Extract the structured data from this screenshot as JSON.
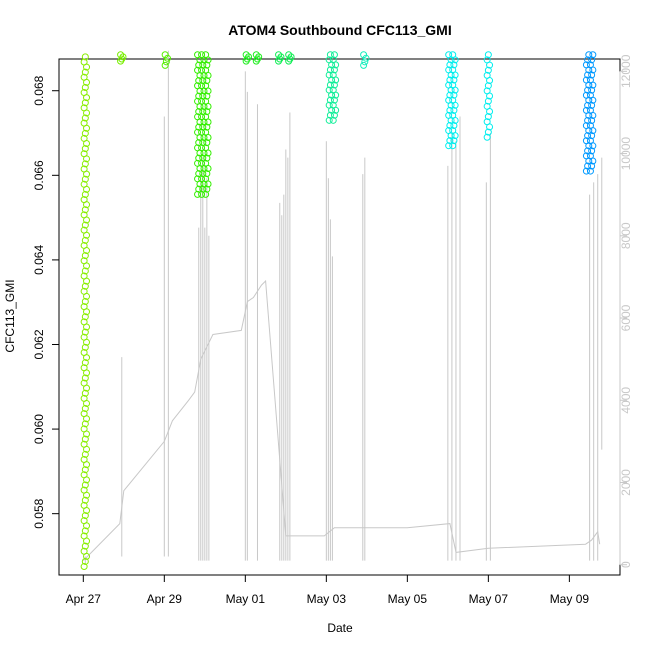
{
  "chart_data": {
    "type": "scatter",
    "title": "ATOM4 Southbound CFC113_GMI",
    "xlabel": "Date",
    "ylabel": "CFC113_GMI",
    "x_ticks": [
      "Apr 27",
      "Apr 29",
      "May 01",
      "May 03",
      "May 05",
      "May 07",
      "May 09"
    ],
    "x_tick_days": [
      0,
      2,
      4,
      6,
      8,
      10,
      12
    ],
    "xlim_days": [
      -0.6,
      13.25
    ],
    "y_ticks": [
      "0.058",
      "0.060",
      "0.062",
      "0.064",
      "0.066",
      "0.068"
    ],
    "y_tick_values": [
      0.058,
      0.06,
      0.062,
      0.064,
      0.066,
      0.068
    ],
    "ylim": [
      0.05655,
      0.06875
    ],
    "right_axis": {
      "ticks": [
        "0",
        "2000",
        "4000",
        "6000",
        "8000",
        "10000",
        "12000"
      ],
      "tick_values": [
        0,
        2000,
        4000,
        6000,
        8000,
        10000,
        12000
      ],
      "ylim": [
        -250,
        12300
      ],
      "color": "#c8c8c8"
    },
    "series": [
      {
        "color": "#88ee00",
        "days": [
          0.05
        ],
        "ymin": 0.05675,
        "ymax": 0.0688
      },
      {
        "color": "#78ee00",
        "days": [
          0.95
        ],
        "ymin": 0.0687,
        "ymax": 0.06885
      },
      {
        "color": "#55ee00",
        "days": [
          2.05
        ],
        "ymin": 0.0686,
        "ymax": 0.06885
      },
      {
        "color": "#33ee00",
        "days": [
          2.85,
          2.95,
          3.05
        ],
        "ymin": 0.06555,
        "ymax": 0.06885
      },
      {
        "color": "#22ee22",
        "days": [
          4.05,
          4.3
        ],
        "ymin": 0.0687,
        "ymax": 0.06885
      },
      {
        "color": "#11ee55",
        "days": [
          4.85,
          5.1
        ],
        "ymin": 0.0687,
        "ymax": 0.06885
      },
      {
        "color": "#11ee99",
        "days": [
          6.1,
          6.2
        ],
        "ymin": 0.0673,
        "ymax": 0.06885
      },
      {
        "color": "#11eebb",
        "days": [
          6.95
        ],
        "ymin": 0.0686,
        "ymax": 0.06885
      },
      {
        "color": "#00eeee",
        "days": [
          9.05,
          9.15
        ],
        "ymin": 0.0667,
        "ymax": 0.06885
      },
      {
        "color": "#00eeee",
        "days": [
          10.0
        ],
        "ymin": 0.0669,
        "ymax": 0.06885
      },
      {
        "color": "#0099ff",
        "days": [
          12.45,
          12.55
        ],
        "ymin": 0.0661,
        "ymax": 0.06885
      }
    ],
    "altitude_trace": {
      "color": "#c8c8c8",
      "points": [
        [
          0.0,
          100
        ],
        [
          0.1,
          200
        ],
        [
          0.9,
          1000
        ],
        [
          1.0,
          1800
        ],
        [
          2.0,
          3000
        ],
        [
          2.2,
          3500
        ],
        [
          2.6,
          4000
        ],
        [
          2.75,
          4200
        ],
        [
          2.9,
          5000
        ],
        [
          3.1,
          5400
        ],
        [
          3.2,
          5600
        ],
        [
          3.9,
          5700
        ],
        [
          4.05,
          6400
        ],
        [
          4.2,
          6500
        ],
        [
          4.4,
          6800
        ],
        [
          4.5,
          6900
        ],
        [
          5.0,
          700
        ],
        [
          5.3,
          700
        ],
        [
          5.95,
          700
        ],
        [
          6.2,
          900
        ],
        [
          8.0,
          900
        ],
        [
          9.05,
          1000
        ],
        [
          9.2,
          300
        ],
        [
          10.0,
          400
        ],
        [
          12.4,
          500
        ],
        [
          12.55,
          600
        ],
        [
          12.7,
          800
        ],
        [
          12.75,
          500
        ]
      ],
      "verticals": [
        {
          "day": 0.05,
          "hmin": 0,
          "hmax": 200
        },
        {
          "day": 0.95,
          "hmin": 200,
          "hmax": 5050
        },
        {
          "day": 2.0,
          "hmin": 200,
          "hmax": 10900
        },
        {
          "day": 2.1,
          "hmin": 200,
          "hmax": 12500
        },
        {
          "day": 2.85,
          "hmin": 100,
          "hmax": 8200
        },
        {
          "day": 2.9,
          "hmin": 100,
          "hmax": 9500
        },
        {
          "day": 2.95,
          "hmin": 100,
          "hmax": 9900
        },
        {
          "day": 3.0,
          "hmin": 100,
          "hmax": 8200
        },
        {
          "day": 3.05,
          "hmin": 100,
          "hmax": 9400
        },
        {
          "day": 3.1,
          "hmin": 100,
          "hmax": 8000
        },
        {
          "day": 4.0,
          "hmin": 100,
          "hmax": 12000
        },
        {
          "day": 4.05,
          "hmin": 100,
          "hmax": 11500
        },
        {
          "day": 4.3,
          "hmin": 100,
          "hmax": 11200
        },
        {
          "day": 4.85,
          "hmin": 100,
          "hmax": 8800
        },
        {
          "day": 4.9,
          "hmin": 100,
          "hmax": 8500
        },
        {
          "day": 4.95,
          "hmin": 100,
          "hmax": 9000
        },
        {
          "day": 5.0,
          "hmin": 100,
          "hmax": 10100
        },
        {
          "day": 5.05,
          "hmin": 100,
          "hmax": 9900
        },
        {
          "day": 5.1,
          "hmin": 100,
          "hmax": 11000
        },
        {
          "day": 6.0,
          "hmin": 100,
          "hmax": 10300
        },
        {
          "day": 6.05,
          "hmin": 100,
          "hmax": 9400
        },
        {
          "day": 6.1,
          "hmin": 100,
          "hmax": 8400
        },
        {
          "day": 6.15,
          "hmin": 100,
          "hmax": 7500
        },
        {
          "day": 6.9,
          "hmin": 100,
          "hmax": 9500
        },
        {
          "day": 6.95,
          "hmin": 100,
          "hmax": 9900
        },
        {
          "day": 9.0,
          "hmin": 100,
          "hmax": 9700
        },
        {
          "day": 9.1,
          "hmin": 100,
          "hmax": 10500
        },
        {
          "day": 9.2,
          "hmin": 100,
          "hmax": 10300
        },
        {
          "day": 9.3,
          "hmin": 100,
          "hmax": 10900
        },
        {
          "day": 9.95,
          "hmin": 100,
          "hmax": 9300
        },
        {
          "day": 10.05,
          "hmin": 100,
          "hmax": 10500
        },
        {
          "day": 12.5,
          "hmin": 100,
          "hmax": 9000
        },
        {
          "day": 12.6,
          "hmin": 100,
          "hmax": 9300
        },
        {
          "day": 12.7,
          "hmin": 100,
          "hmax": 9500
        },
        {
          "day": 12.8,
          "hmin": 2800,
          "hmax": 9900
        }
      ]
    }
  }
}
